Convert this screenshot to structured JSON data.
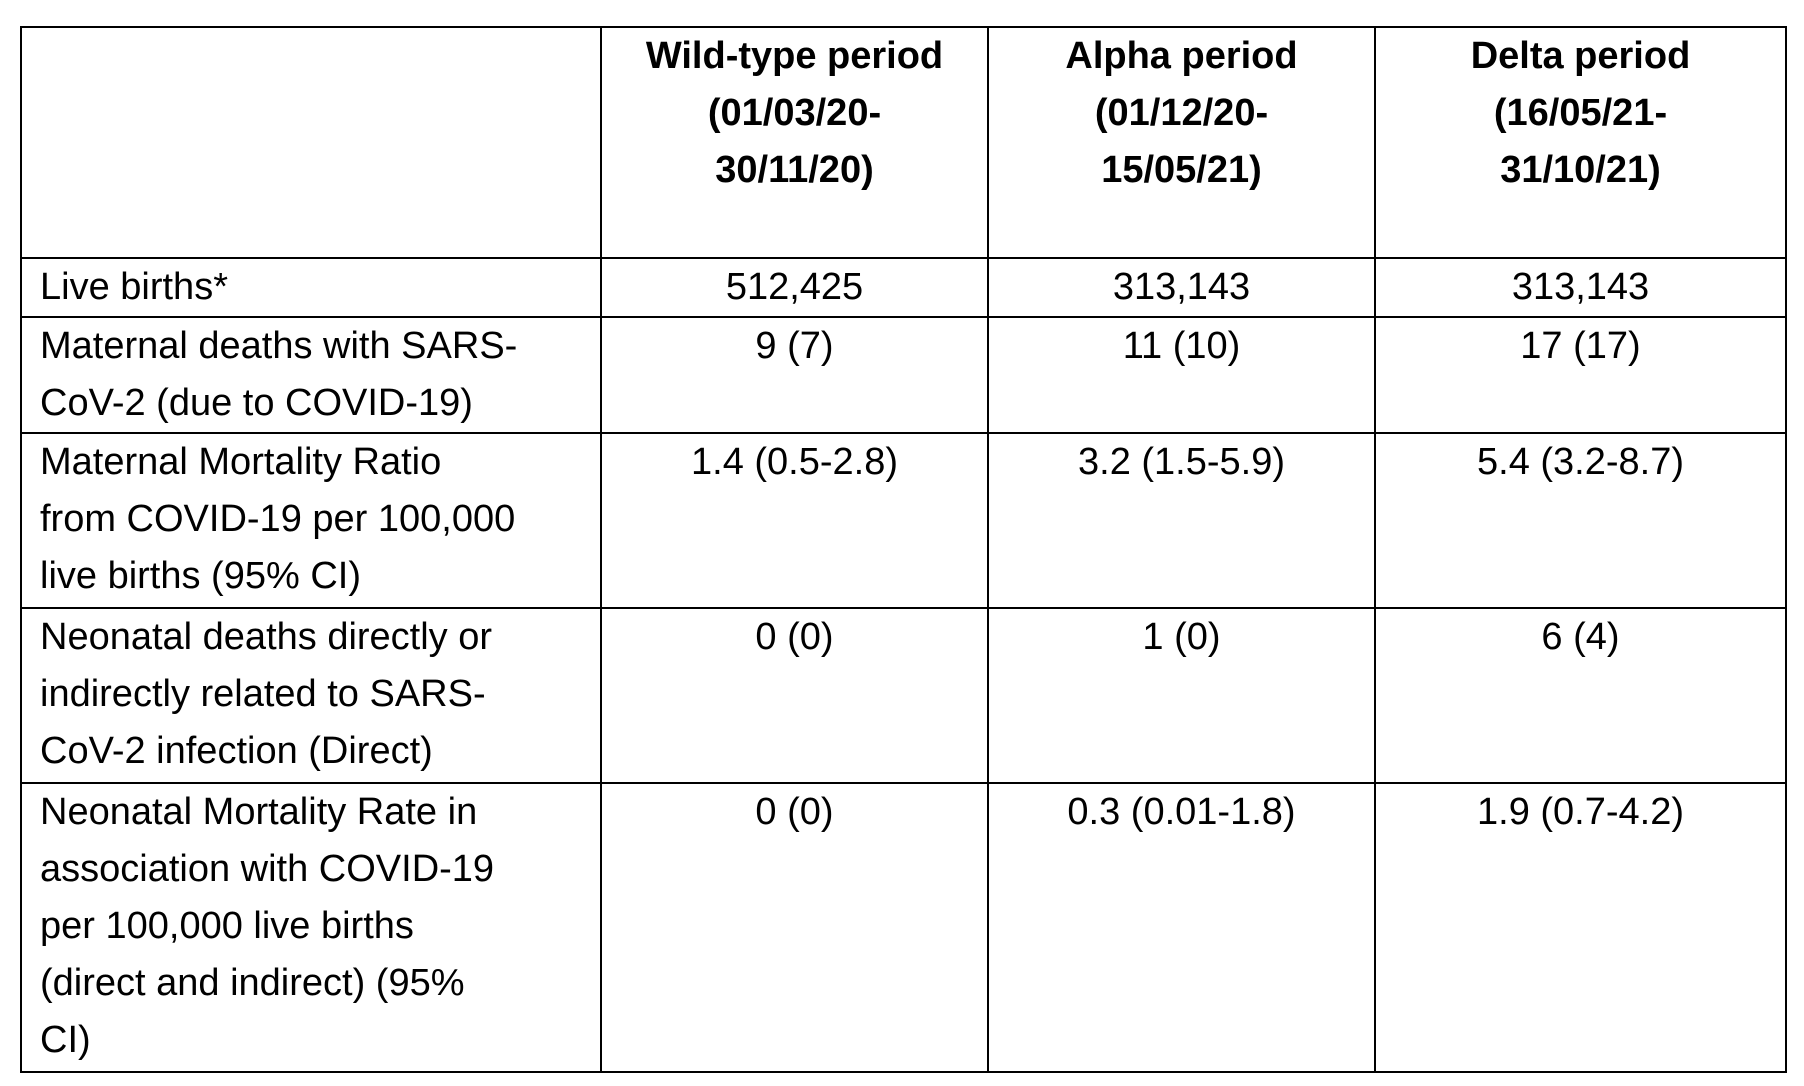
{
  "table": {
    "columns": [
      {
        "label": "",
        "lines": []
      },
      {
        "label": "Wild-type period (01/03/20-30/11/20)",
        "lines": [
          "Wild-type period",
          "(01/03/20-",
          "30/11/20)"
        ]
      },
      {
        "label": "Alpha period (01/12/20-15/05/21)",
        "lines": [
          "Alpha period",
          "(01/12/20-",
          "15/05/21)"
        ]
      },
      {
        "label": "Delta period (16/05/21-31/10/21)",
        "lines": [
          "Delta period",
          "(16/05/21-",
          "31/10/21)"
        ]
      }
    ],
    "rows": [
      {
        "label_lines": [
          "Live births*"
        ],
        "values": [
          "512,425",
          "313,143",
          "313,143"
        ]
      },
      {
        "label_lines": [
          "Maternal deaths with SARS-",
          "CoV-2 (due to COVID-19)"
        ],
        "values": [
          "9 (7)",
          "11 (10)",
          "17 (17)"
        ]
      },
      {
        "label_lines": [
          "Maternal Mortality Ratio",
          "from COVID-19 per 100,000",
          "live births (95% CI)"
        ],
        "values": [
          "1.4 (0.5-2.8)",
          "3.2 (1.5-5.9)",
          "5.4 (3.2-8.7)"
        ]
      },
      {
        "label_lines": [
          "Neonatal deaths directly or",
          "indirectly related to SARS-",
          "CoV-2 infection (Direct)"
        ],
        "values": [
          "0 (0)",
          "1 (0)",
          "6 (4)"
        ]
      },
      {
        "label_lines": [
          "Neonatal Mortality Rate in",
          "association with COVID-19",
          "per 100,000 live births",
          "(direct and indirect) (95%",
          "CI)"
        ],
        "values": [
          "0 (0)",
          "0.3 (0.01-1.8)",
          "1.9 (0.7-4.2)"
        ]
      }
    ]
  }
}
